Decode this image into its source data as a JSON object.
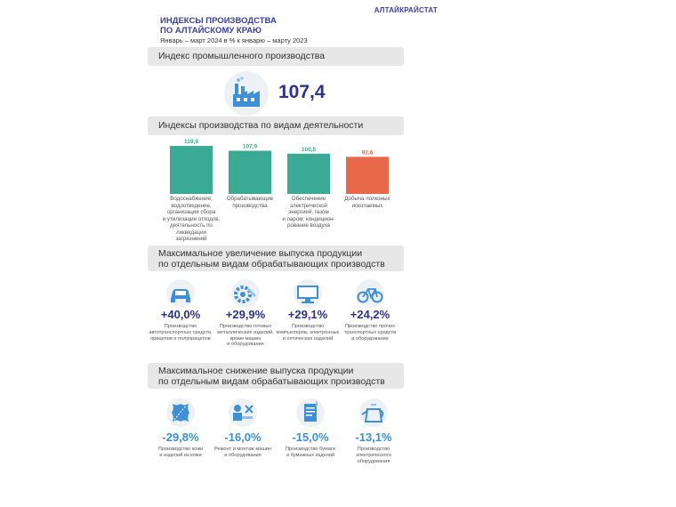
{
  "org": "АЛТАЙКРАЙСТАТ",
  "title_line1": "ИНДЕКСЫ ПРОИЗВОДСТВА",
  "title_line2": "ПО АЛТАЙСКОМУ КРАЮ",
  "subtitle": "Январь – март 2024 в % к январю – марту 2023",
  "industrial": {
    "header": "Индекс промышленного производства",
    "value": "107,4",
    "icon": "factory-icon"
  },
  "activities_header": "Индексы производства по видам деятельности",
  "chart_data": {
    "type": "bar",
    "title": "Индексы производства по видам деятельности",
    "categories": [
      "Водоснабжение; водоотведение, организация сбора и утилизации отходов, деятельность по ликвидации загрязнений",
      "Обрабатывающие производства",
      "Обеспечение электрической энергией, газом и паром; кондиционирование воздуха",
      "Добыча полезных ископаемых"
    ],
    "label_lines": [
      [
        "Водоснабжение;",
        "водоотведение,",
        "организация сбора",
        "и утилизации отходов,",
        "деятельность по",
        "ликвидации",
        "загрязнений"
      ],
      [
        "Обрабатывающие",
        "производства"
      ],
      [
        "Обеспечение",
        "электрической",
        "энергией, газом",
        "и паром; кондицион-",
        "рование воздуха"
      ],
      [
        "Добыча полезных",
        "ископаемых"
      ]
    ],
    "values": [
      119.9,
      107.9,
      100.5,
      92.6
    ],
    "value_labels": [
      "119,9",
      "107,9",
      "100,5",
      "92,6"
    ],
    "colors": [
      "#3aaa94",
      "#3aaa94",
      "#3aaa94",
      "#e8684a"
    ],
    "ylim": [
      0,
      125
    ],
    "grid": false
  },
  "increase": {
    "header_line1": "Максимальное увеличение выпуска продукции",
    "header_line2": "по отдельным видам обрабатывающих производств",
    "items": [
      {
        "value": "+40,0%",
        "icon": "car-icon",
        "lines": [
          "Производство",
          "автотранспортных средств,",
          "прицепов и полуприцепов"
        ]
      },
      {
        "value": "+29,9%",
        "icon": "gear-icon",
        "lines": [
          "Производство готовых",
          "металлических изделий,",
          "кроме машин",
          "и оборудования"
        ]
      },
      {
        "value": "+29,1%",
        "icon": "monitor-icon",
        "lines": [
          "Производство",
          "компьютеров, электронных",
          "и оптических изделий"
        ]
      },
      {
        "value": "+24,2%",
        "icon": "bicycle-icon",
        "lines": [
          "Производство прочих",
          "транспортных средств",
          "и оборудования"
        ]
      }
    ]
  },
  "decrease": {
    "header_line1": "Максимальное снижение выпуска продукции",
    "header_line2": "по отдельным видам обрабатывающих производств",
    "items": [
      {
        "value": "-29,8%",
        "icon": "leather-icon",
        "lines": [
          "Производство кожи",
          "и изделий из кожи"
        ]
      },
      {
        "value": "-16,0%",
        "icon": "repair-icon",
        "lines": [
          "Ремонт и монтаж машин",
          "и оборудования"
        ]
      },
      {
        "value": "-15,0%",
        "icon": "paper-icon",
        "lines": [
          "Производство бумаги",
          "и бумажных изделий"
        ]
      },
      {
        "value": "-13,1%",
        "icon": "kettle-icon",
        "lines": [
          "Производство",
          "электрического",
          "оборудования"
        ]
      }
    ]
  }
}
